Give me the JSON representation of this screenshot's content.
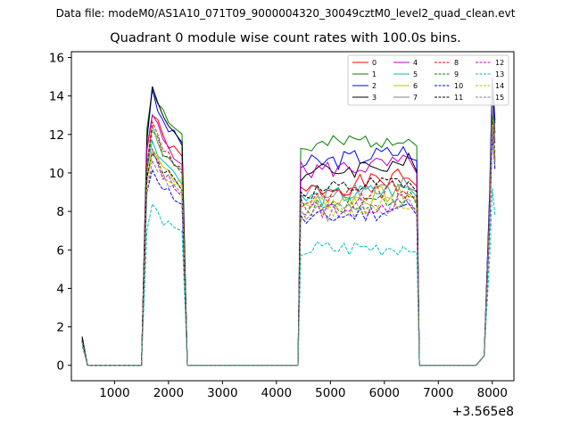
{
  "figure": {
    "supertitle": "Data file: modeM0/AS1A10_071T09_9000004320_30049cztM0_level2_quad_clean.evt"
  },
  "chart_data": {
    "type": "line",
    "title": "Quadrant 0 module wise count rates with 100.0s bins.",
    "xlabel": "",
    "ylabel": "",
    "x_offset_label": "+3.565e8",
    "xlim": [
      200,
      8400
    ],
    "ylim": [
      -0.8,
      16.3
    ],
    "xticks": [
      1000,
      2000,
      3000,
      4000,
      5000,
      6000,
      7000,
      8000
    ],
    "yticks": [
      0,
      2,
      4,
      6,
      8,
      10,
      12,
      14,
      16
    ],
    "grid": false,
    "legend_position": "top-right",
    "legend_columns": 4,
    "segments": [
      {
        "x_start": 400,
        "x_end": 500,
        "n": 2
      },
      {
        "x_start": 500,
        "x_end": 1500,
        "n": 11,
        "zero": true
      },
      {
        "x_start": 1500,
        "x_end": 2200,
        "n": 8
      },
      {
        "x_start": 2200,
        "x_end": 4400,
        "n": 23,
        "zero_inner": true
      },
      {
        "x_start": 4400,
        "x_end": 6600,
        "n": 23
      },
      {
        "x_start": 6600,
        "x_end": 7900,
        "n": 14,
        "zero_inner": true
      },
      {
        "x_start": 7900,
        "x_end": 8050,
        "n": 4
      }
    ],
    "series": [
      {
        "name": "0",
        "color": "#ff0000",
        "dash": "solid",
        "levels": [
          1.3,
          13.1,
          9.0,
          9.8,
          12.6
        ],
        "seed": 1
      },
      {
        "name": "1",
        "color": "#008000",
        "dash": "solid",
        "levels": [
          1.4,
          14.6,
          11.2,
          12.0,
          14.8
        ],
        "seed": 2
      },
      {
        "name": "2",
        "color": "#0000ff",
        "dash": "solid",
        "levels": [
          1.4,
          14.0,
          10.4,
          11.2,
          15.0
        ],
        "seed": 3
      },
      {
        "name": "3",
        "color": "#000000",
        "dash": "solid",
        "levels": [
          1.5,
          14.3,
          9.9,
          10.6,
          14.2
        ],
        "seed": 4
      },
      {
        "name": "4",
        "color": "#bf00bf",
        "dash": "solid",
        "levels": [
          1.3,
          13.0,
          10.1,
          10.5,
          13.6
        ],
        "seed": 5
      },
      {
        "name": "5",
        "color": "#00bfbf",
        "dash": "solid",
        "levels": [
          1.2,
          11.8,
          8.6,
          9.2,
          12.4
        ],
        "seed": 6
      },
      {
        "name": "6",
        "color": "#bfbf00",
        "dash": "solid",
        "levels": [
          1.2,
          11.5,
          8.4,
          9.0,
          12.0
        ],
        "seed": 7
      },
      {
        "name": "7",
        "color": "#808080",
        "dash": "solid",
        "levels": [
          1.3,
          12.2,
          8.9,
          9.5,
          13.8
        ],
        "seed": 8
      },
      {
        "name": "8",
        "color": "#ff0000",
        "dash": "dashed",
        "levels": [
          1.3,
          12.5,
          8.5,
          9.2,
          12.8
        ],
        "seed": 9
      },
      {
        "name": "9",
        "color": "#008000",
        "dash": "dashed",
        "levels": [
          1.3,
          12.2,
          8.2,
          8.8,
          13.0
        ],
        "seed": 10
      },
      {
        "name": "10",
        "color": "#0000ff",
        "dash": "dashed",
        "levels": [
          1.2,
          10.3,
          7.5,
          8.2,
          12.0
        ],
        "seed": 11
      },
      {
        "name": "11",
        "color": "#000000",
        "dash": "dashed",
        "levels": [
          1.3,
          11.3,
          8.9,
          9.5,
          12.4
        ],
        "seed": 12
      },
      {
        "name": "12",
        "color": "#bf00bf",
        "dash": "dashed",
        "levels": [
          1.2,
          11.0,
          8.0,
          8.5,
          12.6
        ],
        "seed": 13
      },
      {
        "name": "13",
        "color": "#00bfbf",
        "dash": "dashed",
        "levels": [
          1.0,
          8.3,
          6.0,
          6.2,
          9.2
        ],
        "seed": 14
      },
      {
        "name": "14",
        "color": "#bfbf00",
        "dash": "dashed",
        "levels": [
          1.2,
          11.2,
          8.0,
          8.6,
          12.5
        ],
        "seed": 15
      },
      {
        "name": "15",
        "color": "#808080",
        "dash": "dashed",
        "levels": [
          1.2,
          10.8,
          7.8,
          8.3,
          12.2
        ],
        "seed": 16
      }
    ]
  }
}
